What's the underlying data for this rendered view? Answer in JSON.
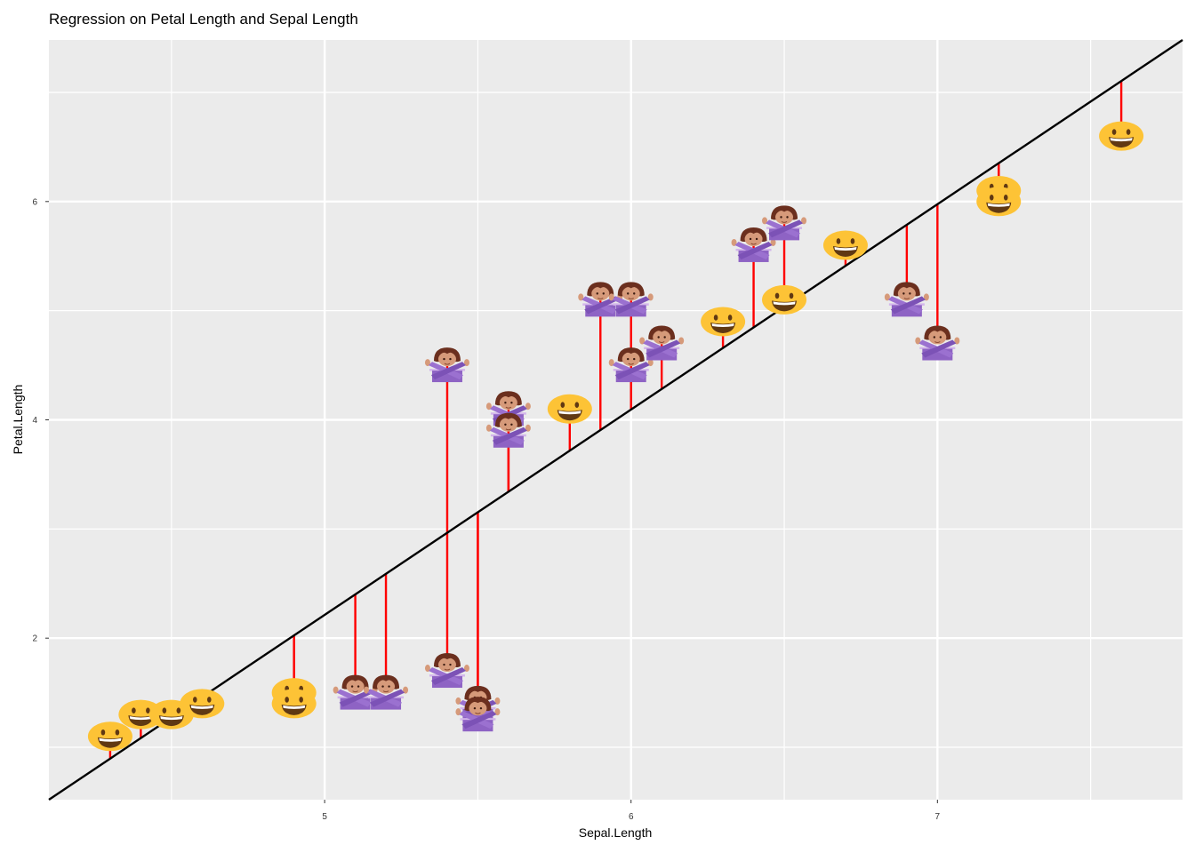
{
  "chart_data": {
    "type": "scatter",
    "title": "Regression on Petal Length and Sepal Length",
    "xlabel": "Sepal.Length",
    "ylabel": "Petal.Length",
    "xlim": [
      4.1,
      7.8
    ],
    "ylim": [
      0.52,
      7.48
    ],
    "x_ticks": [
      5,
      6,
      7
    ],
    "y_ticks": [
      2,
      4,
      6
    ],
    "x_ticks_minor": [
      4.5,
      5.5,
      6.5,
      7.5
    ],
    "y_ticks_minor": [
      1,
      3,
      5,
      7
    ],
    "regression_line": {
      "x": [
        4.1,
        7.8
      ],
      "y": [
        0.52,
        7.48
      ]
    },
    "residual_color": "#ff0000",
    "line_color": "#000000",
    "panel_color": "#ebebeb",
    "series": [
      {
        "marker": "grinning-face-emoji",
        "points": [
          {
            "x": 4.3,
            "y": 1.1
          },
          {
            "x": 4.4,
            "y": 1.3
          },
          {
            "x": 4.5,
            "y": 1.3
          },
          {
            "x": 4.6,
            "y": 1.4
          },
          {
            "x": 4.9,
            "y": 1.5
          },
          {
            "x": 4.9,
            "y": 1.4
          },
          {
            "x": 5.8,
            "y": 4.1
          },
          {
            "x": 6.3,
            "y": 4.9
          },
          {
            "x": 6.5,
            "y": 5.1
          },
          {
            "x": 6.7,
            "y": 5.6
          },
          {
            "x": 7.2,
            "y": 6.1
          },
          {
            "x": 7.2,
            "y": 6.0
          },
          {
            "x": 7.6,
            "y": 6.6
          }
        ]
      },
      {
        "marker": "person-gesturing-no-emoji",
        "points": [
          {
            "x": 5.1,
            "y": 1.5
          },
          {
            "x": 5.2,
            "y": 1.5
          },
          {
            "x": 5.4,
            "y": 1.7
          },
          {
            "x": 5.4,
            "y": 4.5
          },
          {
            "x": 5.5,
            "y": 1.4
          },
          {
            "x": 5.5,
            "y": 1.3
          },
          {
            "x": 5.6,
            "y": 4.1
          },
          {
            "x": 5.6,
            "y": 3.9
          },
          {
            "x": 5.9,
            "y": 5.1
          },
          {
            "x": 6.0,
            "y": 5.1
          },
          {
            "x": 6.0,
            "y": 4.5
          },
          {
            "x": 6.1,
            "y": 4.7
          },
          {
            "x": 6.4,
            "y": 5.6
          },
          {
            "x": 6.5,
            "y": 5.8
          },
          {
            "x": 6.9,
            "y": 5.1
          },
          {
            "x": 7.0,
            "y": 4.7
          }
        ]
      }
    ]
  }
}
